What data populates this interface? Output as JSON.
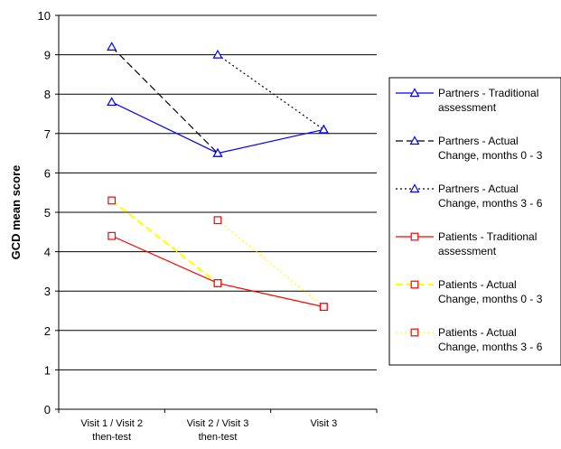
{
  "chart_data": {
    "type": "line",
    "title": "",
    "xlabel": "",
    "ylabel": "GCD mean score",
    "categories": [
      [
        "Visit 1 / Visit 2",
        "then-test"
      ],
      [
        "Visit 2 / Visit 3",
        "then-test"
      ],
      [
        "Visit 3"
      ]
    ],
    "ylim": [
      0,
      10
    ],
    "yticks": [
      "0",
      "1",
      "2",
      "3",
      "4",
      "5",
      "6",
      "7",
      "8",
      "9",
      "10"
    ],
    "grid": "horizontal",
    "legend_position": "right",
    "series": [
      {
        "name": [
          "Partners - Traditional",
          "assessment"
        ],
        "color": "#0000FF",
        "dash": "solid",
        "marker": "triangle",
        "values": [
          7.8,
          6.5,
          7.1
        ]
      },
      {
        "name": [
          "Partners - Actual",
          "Change, months 0 - 3"
        ],
        "color": "#000000",
        "dash": "dashed",
        "marker": "triangle",
        "values": [
          9.2,
          6.5,
          null
        ]
      },
      {
        "name": [
          "Partners - Actual",
          "Change, months 3 - 6"
        ],
        "color": "#000000",
        "dash": "dotted",
        "marker": "triangle",
        "values": [
          null,
          9.0,
          7.1
        ]
      },
      {
        "name": [
          "Patients - Traditional",
          "assessment"
        ],
        "color": "#FF0000",
        "dash": "solid",
        "marker": "square",
        "values": [
          4.4,
          3.2,
          2.6
        ]
      },
      {
        "name": [
          "Patients - Actual",
          "Change, months 0 - 3"
        ],
        "color": "#FFFF00",
        "dash": "dashed",
        "marker": "square",
        "values": [
          5.3,
          3.2,
          null
        ]
      },
      {
        "name": [
          "Patients - Actual",
          "Change, months 3 - 6"
        ],
        "color": "#FFFF00",
        "dash": "dotted",
        "marker": "square",
        "values": [
          null,
          4.8,
          2.6
        ]
      }
    ]
  }
}
